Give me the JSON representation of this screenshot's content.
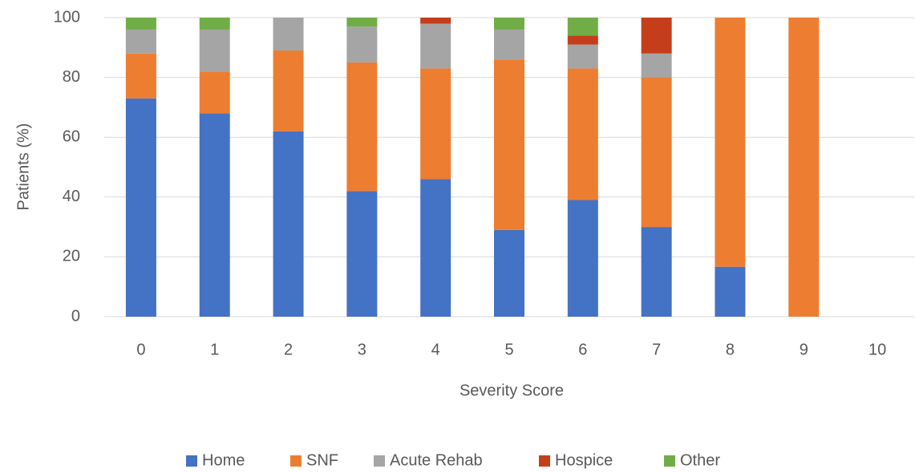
{
  "chart_data": {
    "type": "stacked-bar",
    "x_label": "Severity Score",
    "y_label": "Patients (%)",
    "categories": [
      "0",
      "1",
      "2",
      "3",
      "4",
      "5",
      "6",
      "7",
      "8",
      "9",
      "10"
    ],
    "series": [
      {
        "name": "Home",
        "color": "#4472c4",
        "values": [
          73,
          68,
          62,
          42,
          46,
          29,
          39,
          30,
          16.7,
          0,
          0
        ]
      },
      {
        "name": "SNF",
        "color": "#ed7d31",
        "values": [
          15,
          14,
          27,
          43,
          37,
          57,
          44,
          50,
          83.3,
          100,
          0
        ]
      },
      {
        "name": "Acute Rehab",
        "color": "#a5a5a5",
        "values": [
          8,
          14,
          11,
          12,
          15,
          10,
          8,
          8,
          0,
          0,
          0
        ]
      },
      {
        "name": "Hospice",
        "color": "#c43e1c",
        "values": [
          0,
          0,
          0,
          0,
          2,
          0,
          3,
          12,
          0,
          0,
          0
        ]
      },
      {
        "name": "Other",
        "color": "#70ad47",
        "values": [
          4,
          4,
          0,
          3,
          0,
          4,
          6,
          0,
          0,
          0,
          0
        ]
      }
    ],
    "ylim": [
      0,
      100
    ],
    "yticks": [
      0,
      20,
      40,
      60,
      80,
      100
    ],
    "grid": true,
    "legend": "bottom"
  }
}
